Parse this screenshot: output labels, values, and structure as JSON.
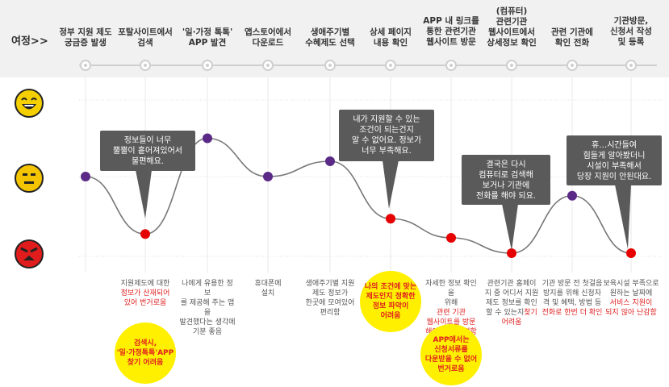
{
  "journey_label": "여정>>",
  "stages": [
    "정부 지원 제도\n궁금증 발생",
    "포탈사이트에서\n검색",
    "'일·가정 톡톡'\nAPP 발견",
    "앱스토어에서\n다운로드",
    "생애주기별\n수혜제도 선택",
    "상세 페이지\n내용 확인",
    "APP 내 링크를\n통한 관련기관\n웹사이트 방문",
    "(컴퓨터)\n관련기관\n웹사이트에서\n상세정보 확인",
    "관련 기관에\n확인 전화",
    "기관방문,\n신청서 작성\n및 등록"
  ],
  "faces": [
    "happy-face-icon",
    "neutral-face-icon",
    "angry-face-icon"
  ],
  "chart_data": {
    "type": "line",
    "levels": [
      "happy",
      "neutral",
      "angry"
    ],
    "points": [
      {
        "stage": 1,
        "score": 0.0,
        "color": "purple"
      },
      {
        "stage": 2,
        "score": -0.75,
        "color": "red"
      },
      {
        "stage": 3,
        "score": 0.5,
        "color": "purple"
      },
      {
        "stage": 4,
        "score": 0.0,
        "color": "purple"
      },
      {
        "stage": 5,
        "score": 0.2,
        "color": "purple"
      },
      {
        "stage": 6,
        "score": -0.55,
        "color": "red"
      },
      {
        "stage": 7,
        "score": -0.8,
        "color": "red"
      },
      {
        "stage": 8,
        "score": -1.0,
        "color": "red"
      },
      {
        "stage": 9,
        "score": -0.25,
        "color": "purple"
      },
      {
        "stage": 10,
        "score": -1.0,
        "color": "red"
      }
    ],
    "colors": {
      "purple": "#5b2a86",
      "red": "#e60000",
      "line": "#777777"
    }
  },
  "bubbles": [
    "정보들이 너무\n뿔뿔이 흩어져있어서\n불편해요.",
    "내가 지원할 수 있는\n조건이 되는건지\n알 수 없어요. 정보가\n너무 부족해요.",
    "결국은 다시\n컴퓨터로 검색해\n보거나 기관에\n전화를 해야 되요.",
    "휴…시간들여\n힘들게 알아봤더니\n시설이 부족해서\n당장 지원이 안된대요."
  ],
  "notes": [
    {
      "pre": "지원제도에 대한",
      "red": "정보가 산재되어\n있어 번거로움",
      "post": ""
    },
    {
      "pre": "나에게 유용한 정보\n를 제공해 주는 앱을\n발견했다는 생각에\n기분 좋음",
      "red": "",
      "post": ""
    },
    {
      "pre": "휴대폰에\n설치",
      "red": "",
      "post": ""
    },
    {
      "pre": "생애주기별 지원\n제도 정보가\n한곳에 모여있어\n편리함",
      "red": "",
      "post": ""
    },
    {
      "pre": "자세한 정보 확인을\n위해",
      "red": "관련 기관\n웹사이트를 방문\n해야 되어 불편함",
      "post": ""
    },
    {
      "pre": "관련기관 홈페이\n지 중 어디서 지원\n제도 정보를 확인\n할 수 있는지",
      "red": "찾기\n어려움",
      "post": ""
    },
    {
      "pre": "기관 방문 전 첫걸음\n방지를 위해 신청자\n격 및 혜택, 방법 등",
      "red": "전화로 한번 더 확인",
      "post": ""
    },
    {
      "pre": "보육시설 부족으로\n원하는 날짜에",
      "red": "서비스 지원이\n되지 않아 난감함",
      "post": ""
    }
  ],
  "highlights": [
    "검색시,\n'일·가정톡톡'APP\n찾기 어려움",
    "나의 조건에 맞는\n제도인지 정확한\n정보 파악이\n어려움",
    "APP에서는\n신청서류를\n다운받을 수 없어\n번거로움"
  ]
}
